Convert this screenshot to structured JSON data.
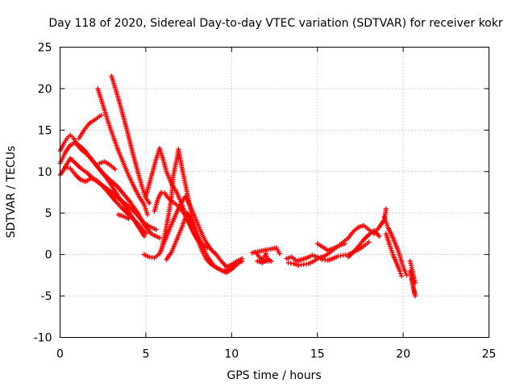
{
  "chart_data": {
    "type": "scatter",
    "title": "Day 118 of 2020, Sidereal Day-to-day VTEC variation (SDTVAR) for receiver kokr",
    "xlabel": "GPS time / hours",
    "ylabel": "SDTVAR / TECUs",
    "xlim": [
      0,
      25
    ],
    "ylim": [
      -10,
      25
    ],
    "xticks": [
      0,
      5,
      10,
      15,
      20,
      25
    ],
    "yticks": [
      -10,
      -5,
      0,
      5,
      10,
      15,
      20,
      25
    ],
    "grid": true,
    "marker": "+",
    "color": "#ff0000",
    "series": [
      {
        "name": "arc-1",
        "points": [
          [
            0.0,
            12.5
          ],
          [
            0.2,
            13.3
          ],
          [
            0.4,
            14.0
          ],
          [
            0.6,
            14.4
          ],
          [
            0.8,
            14.0
          ],
          [
            1.0,
            13.2
          ],
          [
            1.3,
            12.5
          ],
          [
            1.6,
            12.0
          ],
          [
            1.9,
            11.3
          ],
          [
            2.2,
            10.5
          ],
          [
            2.6,
            9.5
          ],
          [
            3.0,
            8.3
          ],
          [
            3.4,
            7.0
          ],
          [
            3.8,
            5.8
          ],
          [
            4.2,
            4.5
          ],
          [
            4.6,
            3.2
          ],
          [
            4.9,
            2.2
          ]
        ]
      },
      {
        "name": "arc-2",
        "points": [
          [
            0.0,
            11.0
          ],
          [
            0.3,
            12.3
          ],
          [
            0.6,
            13.2
          ],
          [
            0.9,
            13.5
          ],
          [
            1.2,
            13.0
          ],
          [
            1.5,
            12.4
          ],
          [
            1.8,
            11.6
          ],
          [
            2.1,
            10.8
          ],
          [
            2.5,
            9.8
          ],
          [
            2.9,
            9.0
          ],
          [
            3.3,
            8.3
          ],
          [
            3.7,
            7.3
          ],
          [
            4.1,
            6.3
          ],
          [
            4.5,
            5.1
          ],
          [
            4.9,
            3.6
          ],
          [
            5.3,
            2.5
          ],
          [
            5.8,
            2.0
          ]
        ]
      },
      {
        "name": "arc-3",
        "points": [
          [
            0.0,
            9.6
          ],
          [
            0.3,
            10.5
          ],
          [
            0.6,
            10.4
          ],
          [
            0.9,
            9.6
          ],
          [
            1.2,
            9.0
          ],
          [
            1.5,
            8.8
          ],
          [
            1.8,
            9.2
          ],
          [
            2.1,
            9.0
          ],
          [
            2.4,
            8.4
          ],
          [
            2.8,
            7.5
          ],
          [
            3.2,
            6.5
          ],
          [
            3.6,
            5.6
          ],
          [
            4.0,
            4.8
          ],
          [
            4.5,
            3.8
          ],
          [
            5.0,
            2.5
          ]
        ]
      },
      {
        "name": "arc-4",
        "points": [
          [
            0.3,
            10.6
          ],
          [
            0.6,
            11.6
          ],
          [
            0.9,
            11.0
          ],
          [
            1.2,
            10.4
          ],
          [
            1.6,
            9.8
          ],
          [
            2.0,
            9.0
          ],
          [
            2.5,
            8.3
          ],
          [
            3.0,
            7.5
          ],
          [
            3.5,
            6.6
          ],
          [
            4.0,
            5.8
          ],
          [
            4.4,
            5.0
          ],
          [
            4.8,
            4.0
          ],
          [
            5.2,
            3.4
          ],
          [
            5.6,
            3.0
          ]
        ]
      },
      {
        "name": "arc-5",
        "points": [
          [
            1.1,
            14.0
          ],
          [
            1.4,
            15.0
          ],
          [
            1.7,
            15.8
          ],
          [
            2.0,
            16.2
          ],
          [
            2.4,
            16.8
          ]
        ]
      },
      {
        "name": "arc-6",
        "points": [
          [
            2.2,
            20.0
          ],
          [
            2.5,
            18.0
          ],
          [
            2.8,
            16.0
          ],
          [
            3.1,
            14.2
          ],
          [
            3.4,
            12.5
          ],
          [
            3.7,
            11.0
          ],
          [
            4.0,
            9.5
          ],
          [
            4.3,
            8.2
          ],
          [
            4.6,
            7.0
          ],
          [
            4.9,
            6.0
          ],
          [
            5.1,
            4.8
          ]
        ]
      },
      {
        "name": "arc-7",
        "points": [
          [
            3.0,
            21.5
          ],
          [
            3.3,
            19.5
          ],
          [
            3.6,
            17.3
          ],
          [
            3.9,
            15.0
          ],
          [
            4.2,
            12.5
          ],
          [
            4.5,
            10.2
          ],
          [
            4.8,
            8.0
          ],
          [
            5.0,
            6.8
          ],
          [
            5.2,
            6.2
          ]
        ]
      },
      {
        "name": "arc-8",
        "points": [
          [
            2.3,
            11.0
          ],
          [
            2.6,
            11.2
          ],
          [
            2.9,
            10.8
          ],
          [
            3.2,
            10.3
          ]
        ]
      },
      {
        "name": "arc-9",
        "points": [
          [
            3.4,
            4.8
          ],
          [
            3.7,
            4.6
          ],
          [
            4.0,
            4.3
          ]
        ]
      },
      {
        "name": "arc-10",
        "points": [
          [
            5.0,
            7.0
          ],
          [
            5.2,
            8.5
          ],
          [
            5.4,
            10.0
          ],
          [
            5.6,
            11.5
          ],
          [
            5.8,
            12.8
          ],
          [
            6.0,
            11.5
          ],
          [
            6.2,
            10.0
          ],
          [
            6.5,
            8.5
          ],
          [
            6.8,
            7.5
          ],
          [
            7.1,
            6.0
          ],
          [
            7.4,
            4.5
          ],
          [
            7.7,
            3.0
          ],
          [
            8.0,
            1.8
          ],
          [
            8.3,
            1.2
          ],
          [
            8.6,
            0.8
          ]
        ]
      },
      {
        "name": "arc-11",
        "points": [
          [
            5.5,
            5.2
          ],
          [
            5.7,
            6.7
          ],
          [
            5.9,
            7.5
          ],
          [
            6.1,
            7.4
          ],
          [
            6.3,
            6.8
          ],
          [
            6.6,
            6.3
          ],
          [
            6.9,
            5.8
          ],
          [
            7.2,
            5.0
          ],
          [
            7.5,
            3.8
          ],
          [
            7.8,
            2.5
          ],
          [
            8.1,
            1.5
          ],
          [
            8.4,
            1.0
          ]
        ]
      },
      {
        "name": "arc-12",
        "points": [
          [
            4.9,
            0.0
          ],
          [
            5.2,
            -0.3
          ],
          [
            5.5,
            -0.4
          ],
          [
            5.8,
            0.1
          ],
          [
            6.1,
            1.6
          ],
          [
            6.4,
            3.2
          ],
          [
            6.7,
            4.6
          ],
          [
            7.0,
            6.0
          ],
          [
            7.3,
            7.0
          ],
          [
            7.6,
            5.8
          ],
          [
            7.9,
            4.3
          ],
          [
            8.2,
            2.8
          ],
          [
            8.5,
            1.5
          ],
          [
            8.8,
            0.6
          ],
          [
            9.1,
            0.0
          ],
          [
            9.4,
            -0.8
          ],
          [
            9.7,
            -1.5
          ],
          [
            10.0,
            -1.2
          ],
          [
            10.3,
            -0.8
          ],
          [
            10.6,
            -0.5
          ]
        ]
      },
      {
        "name": "arc-13",
        "points": [
          [
            5.9,
            0.5
          ],
          [
            6.1,
            2.3
          ],
          [
            6.3,
            4.5
          ],
          [
            6.5,
            7.0
          ],
          [
            6.6,
            9.5
          ],
          [
            6.8,
            11.5
          ],
          [
            6.9,
            12.7
          ],
          [
            7.1,
            10.5
          ],
          [
            7.3,
            8.5
          ],
          [
            7.5,
            6.5
          ],
          [
            7.7,
            4.5
          ],
          [
            7.9,
            2.5
          ],
          [
            8.2,
            0.8
          ],
          [
            8.5,
            -0.5
          ],
          [
            8.8,
            -1.2
          ],
          [
            9.1,
            -1.6
          ],
          [
            9.4,
            -1.9
          ],
          [
            9.7,
            -2.2
          ],
          [
            10.0,
            -1.8
          ],
          [
            10.3,
            -1.2
          ],
          [
            10.6,
            -0.8
          ]
        ]
      },
      {
        "name": "arc-14",
        "points": [
          [
            6.2,
            -0.6
          ],
          [
            6.5,
            0.3
          ],
          [
            6.8,
            1.8
          ],
          [
            7.1,
            3.3
          ],
          [
            7.4,
            5.0
          ],
          [
            7.7,
            4.0
          ],
          [
            8.0,
            2.5
          ],
          [
            8.3,
            1.0
          ],
          [
            8.6,
            -0.3
          ],
          [
            8.9,
            -1.2
          ],
          [
            9.2,
            -1.7
          ],
          [
            9.5,
            -2.0
          ],
          [
            9.8,
            -1.8
          ],
          [
            10.1,
            -1.3
          ]
        ]
      },
      {
        "name": "arc-15",
        "points": [
          [
            11.4,
            0.3
          ],
          [
            11.6,
            -0.3
          ],
          [
            11.8,
            -0.6
          ],
          [
            12.0,
            0.1
          ],
          [
            12.1,
            -0.5
          ],
          [
            12.3,
            -0.8
          ],
          [
            11.5,
            -0.8
          ],
          [
            11.8,
            -1.0
          ],
          [
            12.0,
            -0.7
          ]
        ]
      },
      {
        "name": "arc-16",
        "points": [
          [
            11.2,
            0.2
          ],
          [
            12.6,
            0.8
          ],
          [
            12.8,
            0.1
          ]
        ]
      },
      {
        "name": "arc-17",
        "points": [
          [
            13.2,
            -0.5
          ],
          [
            13.5,
            -0.3
          ],
          [
            13.8,
            -0.8
          ],
          [
            14.1,
            -0.6
          ],
          [
            14.4,
            -0.4
          ],
          [
            14.7,
            -0.1
          ],
          [
            15.0,
            -0.3
          ],
          [
            15.3,
            -0.6
          ],
          [
            15.6,
            -0.7
          ],
          [
            15.9,
            -0.5
          ],
          [
            16.2,
            -0.2
          ],
          [
            16.5,
            -0.1
          ],
          [
            16.8,
            0.0
          ],
          [
            17.1,
            0.3
          ],
          [
            17.4,
            0.6
          ],
          [
            17.7,
            1.0
          ],
          [
            18.0,
            1.5
          ]
        ]
      },
      {
        "name": "arc-18",
        "points": [
          [
            13.3,
            -1.0
          ],
          [
            13.6,
            -1.1
          ],
          [
            13.9,
            -1.3
          ],
          [
            14.2,
            -1.2
          ],
          [
            14.5,
            -1.1
          ],
          [
            14.8,
            -0.8
          ],
          [
            15.1,
            -0.4
          ],
          [
            15.4,
            -0.2
          ],
          [
            15.7,
            0.2
          ],
          [
            16.0,
            0.7
          ],
          [
            16.3,
            1.1
          ],
          [
            16.6,
            1.3
          ]
        ]
      },
      {
        "name": "arc-19",
        "points": [
          [
            15.0,
            1.3
          ],
          [
            15.3,
            0.9
          ],
          [
            15.6,
            0.5
          ],
          [
            15.9,
            0.7
          ],
          [
            16.2,
            1.0
          ],
          [
            16.5,
            1.5
          ],
          [
            16.8,
            2.0
          ],
          [
            17.1,
            2.8
          ],
          [
            17.4,
            3.3
          ],
          [
            17.7,
            3.5
          ],
          [
            18.0,
            3.0
          ],
          [
            18.3,
            2.5
          ],
          [
            18.6,
            3.3
          ],
          [
            18.9,
            4.2
          ],
          [
            19.0,
            5.5
          ]
        ]
      },
      {
        "name": "arc-20",
        "points": [
          [
            16.8,
            -0.3
          ],
          [
            17.1,
            0.3
          ],
          [
            17.4,
            1.0
          ],
          [
            17.7,
            1.8
          ],
          [
            18.0,
            2.4
          ],
          [
            18.3,
            2.9
          ],
          [
            18.6,
            2.2
          ]
        ]
      },
      {
        "name": "arc-21",
        "points": [
          [
            18.9,
            4.5
          ],
          [
            19.1,
            3.3
          ],
          [
            19.3,
            2.5
          ],
          [
            19.5,
            1.5
          ],
          [
            19.7,
            0.5
          ],
          [
            19.9,
            -0.8
          ],
          [
            20.0,
            -1.5
          ],
          [
            20.1,
            -2.0
          ],
          [
            20.2,
            -2.5
          ]
        ]
      },
      {
        "name": "arc-22",
        "points": [
          [
            19.0,
            2.5
          ],
          [
            19.2,
            1.2
          ],
          [
            19.4,
            0.0
          ],
          [
            19.6,
            -1.0
          ],
          [
            19.8,
            -2.0
          ],
          [
            19.9,
            -2.6
          ]
        ]
      },
      {
        "name": "arc-23",
        "points": [
          [
            20.4,
            -0.8
          ],
          [
            20.5,
            -1.6
          ],
          [
            20.6,
            -2.6
          ],
          [
            20.7,
            -3.4
          ],
          [
            20.5,
            -3.0
          ],
          [
            20.6,
            -4.2
          ],
          [
            20.7,
            -5.0
          ],
          [
            20.4,
            -2.0
          ],
          [
            20.6,
            -2.8
          ]
        ]
      }
    ]
  }
}
